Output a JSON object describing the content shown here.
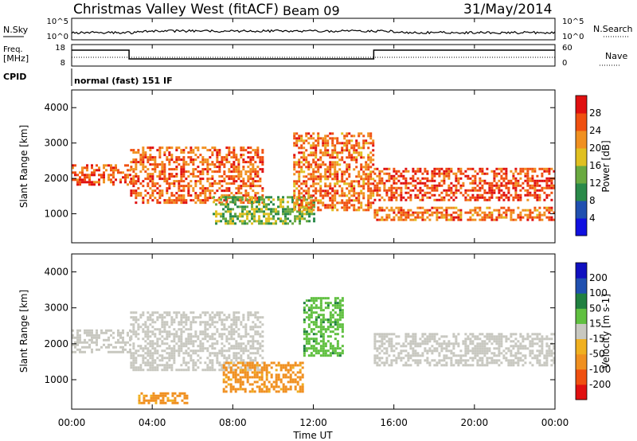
{
  "header": {
    "station": "Christmas Valley West (fitACF)",
    "beam": "Beam 09",
    "date": "31/May/2014"
  },
  "noise_panel": {
    "left_label": "N.Sky",
    "right_label": "N.Search",
    "left_ticks": [
      "10^5",
      "10^0"
    ],
    "right_ticks": [
      "10^5",
      "10^0"
    ]
  },
  "freq_panel": {
    "left_label_line1": "Freq.",
    "left_label_line2": "[MHz]",
    "right_label": "Nave",
    "left_ticks": [
      "18",
      "8"
    ],
    "right_ticks": [
      "60",
      "0"
    ]
  },
  "cpid": {
    "label": "CPID",
    "program": "normal (fast) 151 IF"
  },
  "colors": {
    "power_scale": [
      "#1010e0",
      "#2050b0",
      "#2a8a4a",
      "#6aaa40",
      "#e0c020",
      "#f09020",
      "#f05010",
      "#e01010"
    ],
    "velocity_scale": [
      "#e01010",
      "#f05010",
      "#f09020",
      "#f0b020",
      "#c8c8c0",
      "#60c040",
      "#208040",
      "#2050b0",
      "#1010c0"
    ]
  },
  "chart_data": [
    {
      "type": "heatmap",
      "name": "power",
      "ylabel": "Slant Range [km]",
      "ylim": [
        180,
        4500
      ],
      "yticks": [
        "1000",
        "2000",
        "3000",
        "4000"
      ],
      "xlim": [
        0,
        24
      ],
      "colorbar_label": "Power [dB]",
      "colorbar_ticks": [
        "4",
        "8",
        "12",
        "16",
        "20",
        "24",
        "28"
      ],
      "features": [
        {
          "t_start": 0,
          "t_end": 2.9,
          "r_start": 1800,
          "r_end": 2400,
          "level": 26
        },
        {
          "t_start": 2.9,
          "t_end": 9.5,
          "r_start": 1300,
          "r_end": 2900,
          "level": 25
        },
        {
          "t_start": 7.0,
          "t_end": 12.0,
          "r_start": 700,
          "r_end": 1500,
          "level": 14
        },
        {
          "t_start": 11.0,
          "t_end": 15.0,
          "r_start": 1100,
          "r_end": 3300,
          "level": 24
        },
        {
          "t_start": 15.0,
          "t_end": 24.0,
          "r_start": 1400,
          "r_end": 2300,
          "level": 27
        },
        {
          "t_start": 15.0,
          "t_end": 24.0,
          "r_start": 800,
          "r_end": 1200,
          "level": 24
        }
      ]
    },
    {
      "type": "heatmap",
      "name": "velocity",
      "ylabel": "Slant Range [km]",
      "ylim": [
        180,
        4500
      ],
      "yticks": [
        "1000",
        "2000",
        "3000",
        "4000"
      ],
      "xlim": [
        0,
        24
      ],
      "xlabel": "Time UT",
      "xticks": [
        "00:00",
        "04:00",
        "08:00",
        "12:00",
        "16:00",
        "20:00",
        "00:00"
      ],
      "colorbar_label": "Velocity [m s-1]",
      "colorbar_ticks": [
        "200",
        "100",
        "50",
        "15",
        "-15",
        "-50",
        "-100",
        "-200"
      ],
      "features": [
        {
          "t_start": 0,
          "t_end": 2.9,
          "r_start": 1800,
          "r_end": 2400,
          "velocity": 0
        },
        {
          "t_start": 2.9,
          "t_end": 9.5,
          "r_start": 1300,
          "r_end": 2900,
          "velocity": 0
        },
        {
          "t_start": 7.5,
          "t_end": 11.5,
          "r_start": 700,
          "r_end": 1500,
          "velocity": -60
        },
        {
          "t_start": 3.3,
          "t_end": 5.7,
          "r_start": 350,
          "r_end": 650,
          "velocity": -60
        },
        {
          "t_start": 11.5,
          "t_end": 13.5,
          "r_start": 1700,
          "r_end": 3300,
          "velocity": 40
        },
        {
          "t_start": 15.0,
          "t_end": 24.0,
          "r_start": 1400,
          "r_end": 2300,
          "velocity": 0
        }
      ]
    }
  ]
}
